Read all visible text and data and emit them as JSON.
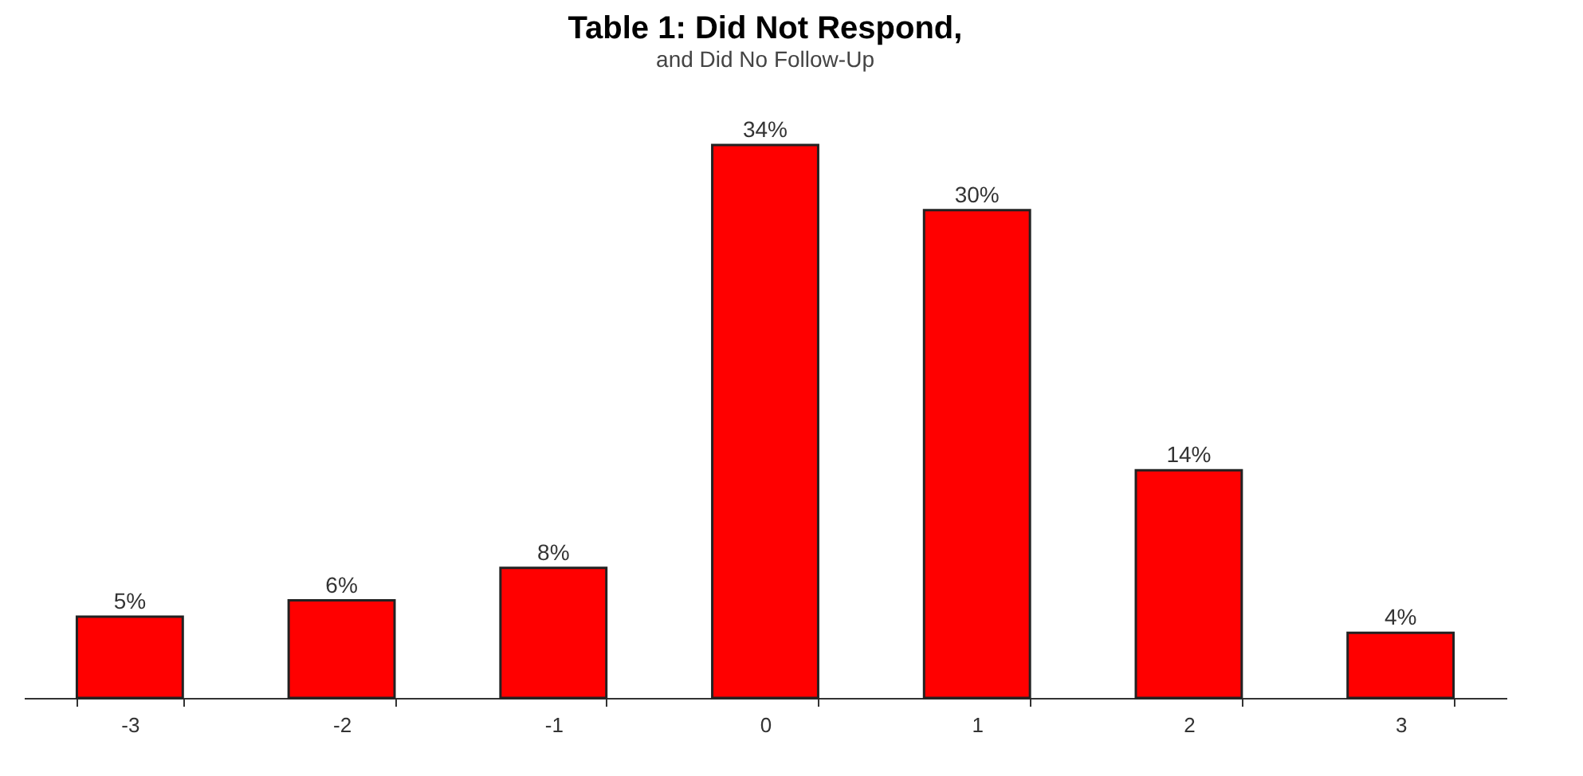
{
  "chart_data": {
    "type": "bar",
    "title": "Table 1: Did Not Respond,",
    "subtitle": "and Did No Follow-Up",
    "categories": [
      "-3",
      "-2",
      "-1",
      "0",
      "1",
      "2",
      "3"
    ],
    "values": [
      5,
      6,
      8,
      34,
      30,
      14,
      4
    ],
    "value_labels": [
      "5%",
      "6%",
      "8%",
      "34%",
      "30%",
      "14%",
      "4%"
    ],
    "color": "#ff0000",
    "grid": false
  }
}
